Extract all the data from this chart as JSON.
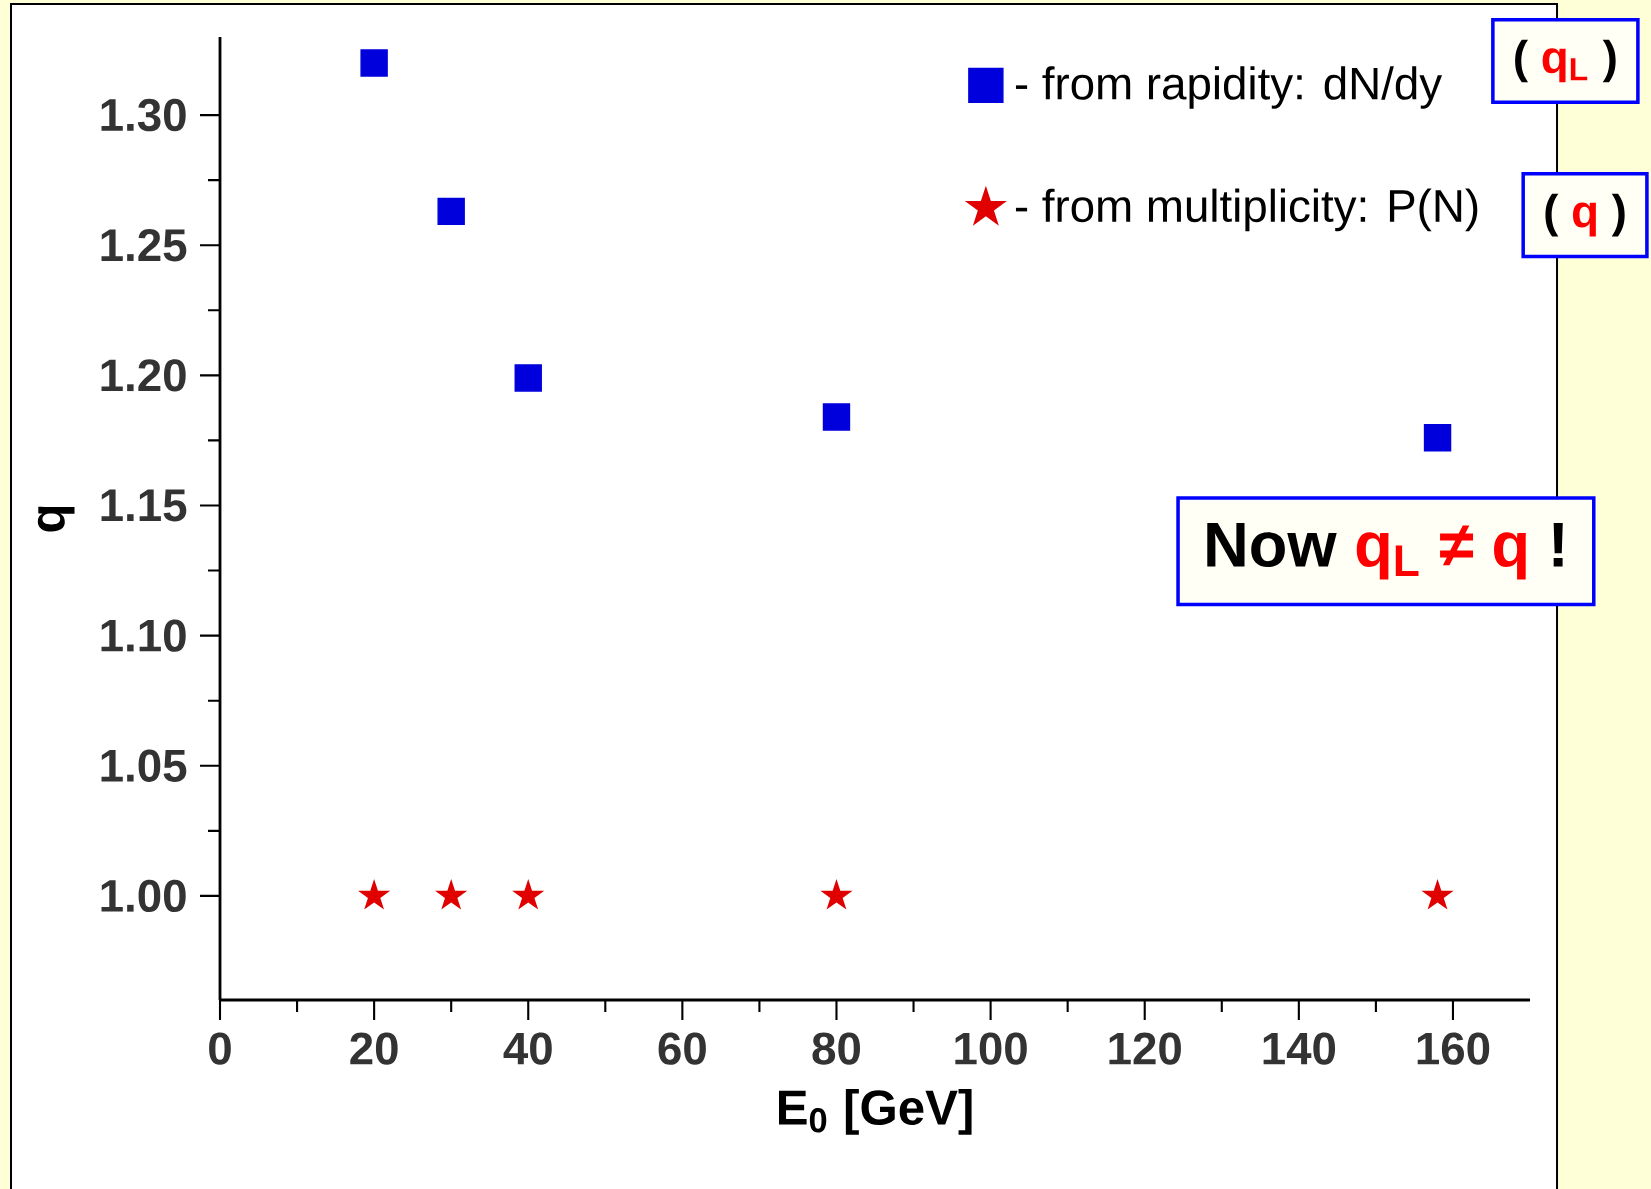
{
  "chart_data": {
    "type": "scatter",
    "xlabel": "E$_{0}$   [GeV]",
    "ylabel": "q",
    "x": [
      20,
      30,
      40,
      80,
      158
    ],
    "series": [
      {
        "name": "- from rapidity: dN/dy",
        "color": "#0000dd",
        "marker": "square",
        "values": [
          1.32,
          1.263,
          1.199,
          1.184,
          1.176
        ]
      },
      {
        "name": "- from multiplicity: P(N)",
        "color": "#e00000",
        "marker": "star",
        "values": [
          1.0,
          1.0,
          1.0,
          1.0,
          1.0
        ]
      }
    ],
    "xlim": [
      0,
      170
    ],
    "ylim": [
      0.96,
      1.33
    ],
    "xticks": [
      0,
      20,
      40,
      60,
      80,
      100,
      120,
      140,
      160
    ],
    "yticks": [
      {
        "value": 1.0,
        "label": "1.00"
      },
      {
        "value": 1.05,
        "label": "1.05"
      },
      {
        "value": 1.1,
        "label": "1.10"
      },
      {
        "value": 1.15,
        "label": "1.15"
      },
      {
        "value": 1.2,
        "label": "1.20"
      },
      {
        "value": 1.25,
        "label": "1.25"
      },
      {
        "value": 1.3,
        "label": "1.30"
      }
    ],
    "legend": "top right",
    "annotations": [
      "( ",
      "q$_{L}$",
      " )",
      "( ",
      "q",
      " )",
      "Now ",
      "q$_{L}$ ≠ q",
      " !"
    ]
  }
}
